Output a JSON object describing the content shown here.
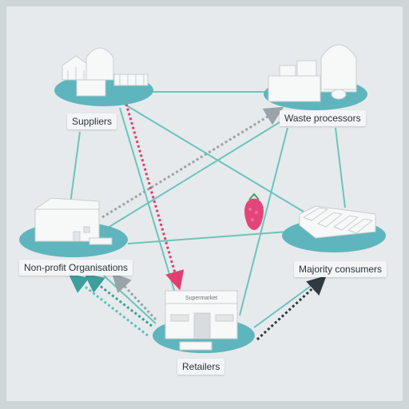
{
  "nodes": {
    "suppliers": "Suppliers",
    "waste_processors": "Waste processors",
    "non_profit": "Non-profit Organisations",
    "majority_consumers": "Majority consumers",
    "retailers": "Retailers",
    "supermarket_sign": "Supermarket"
  },
  "colors": {
    "teal_disc": "#5fb5bd",
    "teal_line": "#6cc4bb",
    "pink_arrow": "#e03f6f",
    "gray_arrow": "#9aa3a8",
    "dark_arrow": "#2f3a40",
    "raspberry": "#e2457a"
  }
}
